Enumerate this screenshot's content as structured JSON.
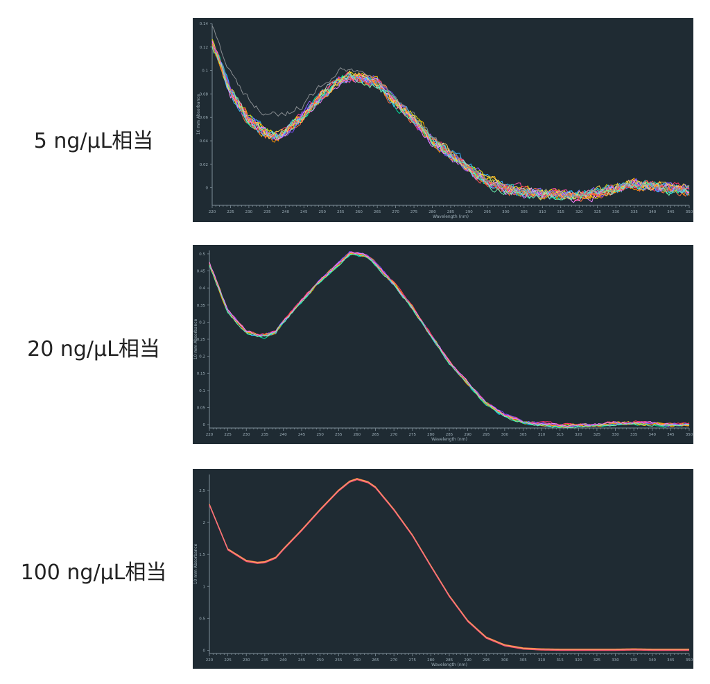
{
  "rows": [
    {
      "label": "5 ng/μL相当"
    },
    {
      "label": "20 ng/μL相当"
    },
    {
      "label": "100 ng/μL相当"
    }
  ],
  "chart_data": [
    {
      "type": "line",
      "title": "",
      "xlabel": "Wavelength (nm)",
      "ylabel": "10 mm Absorbance",
      "xlim": [
        220,
        350
      ],
      "ylim": [
        -0.015,
        0.14
      ],
      "xticks": [
        "220",
        "225",
        "230",
        "235",
        "240",
        "245",
        "250",
        "255",
        "260",
        "265",
        "270",
        "275",
        "280",
        "285",
        "290",
        "295",
        "300",
        "305",
        "310",
        "315",
        "320",
        "325",
        "330",
        "335",
        "340",
        "345",
        "350"
      ],
      "yticks": [
        "0.14",
        "0.12",
        "0.1",
        "0.08",
        "0.06",
        "0.04",
        "0.02",
        "0"
      ],
      "yticks_values": [
        0.14,
        0.12,
        0.1,
        0.08,
        0.06,
        0.04,
        0.02,
        0
      ],
      "grid": false,
      "series_count": 16,
      "noise": 0.004,
      "colors": [
        "#ff4da6",
        "#ffb300",
        "#33b5ff",
        "#8f5bff",
        "#ff6e40",
        "#e6e600",
        "#00e5a0",
        "#ff2e63",
        "#c8c8c8",
        "#7c4dff",
        "#ff9100",
        "#40c4ff",
        "#ea80fc",
        "#ffd54f",
        "#ff5252",
        "#69f0ae"
      ],
      "x": [
        220,
        225,
        230,
        235,
        238,
        240,
        245,
        250,
        255,
        258,
        260,
        265,
        270,
        275,
        280,
        285,
        290,
        295,
        300,
        305,
        310,
        315,
        320,
        325,
        330,
        335,
        340,
        345,
        350
      ],
      "y_mean": [
        0.124,
        0.082,
        0.058,
        0.046,
        0.043,
        0.047,
        0.062,
        0.079,
        0.092,
        0.095,
        0.094,
        0.089,
        0.072,
        0.058,
        0.04,
        0.028,
        0.016,
        0.005,
        -0.001,
        -0.004,
        -0.005,
        -0.006,
        -0.007,
        -0.004,
        -0.001,
        0.003,
        0.001,
        -0.001,
        -0.002
      ],
      "outlier": {
        "color": "#8a8f93",
        "y": [
          0.138,
          0.098,
          0.075,
          0.063,
          0.062,
          0.064,
          0.071,
          0.088,
          0.1,
          0.101,
          0.099,
          0.093,
          0.076,
          0.062,
          0.043,
          0.029,
          0.017,
          0.006,
          0.001,
          -0.004,
          -0.004,
          -0.005,
          -0.006,
          -0.003,
          0.0,
          0.004,
          0.002,
          0.0,
          -0.001
        ]
      }
    },
    {
      "type": "line",
      "title": "",
      "xlabel": "Wavelength (nm)",
      "ylabel": "10 mm Absorbance",
      "xlim": [
        220,
        350
      ],
      "ylim": [
        -0.01,
        0.51
      ],
      "xticks": [
        "220",
        "225",
        "230",
        "235",
        "240",
        "245",
        "250",
        "255",
        "260",
        "265",
        "270",
        "275",
        "280",
        "285",
        "290",
        "295",
        "300",
        "305",
        "310",
        "315",
        "320",
        "325",
        "330",
        "335",
        "340",
        "345",
        "350"
      ],
      "yticks": [
        "0.5",
        "0.45",
        "0.4",
        "0.35",
        "0.3",
        "0.25",
        "0.2",
        "0.15",
        "0.1",
        "0.05",
        "0"
      ],
      "yticks_values": [
        0.5,
        0.45,
        0.4,
        0.35,
        0.3,
        0.25,
        0.2,
        0.15,
        0.1,
        0.05,
        0
      ],
      "grid": false,
      "series_count": 12,
      "noise": 0.004,
      "colors": [
        "#ff4da6",
        "#ffb300",
        "#33b5ff",
        "#8f5bff",
        "#ff6e40",
        "#e6e600",
        "#00e5a0",
        "#ff2e63",
        "#7c4dff",
        "#ff9100",
        "#ea80fc",
        "#69f0ae"
      ],
      "x": [
        220,
        225,
        230,
        233,
        235,
        238,
        240,
        245,
        250,
        255,
        258,
        260,
        263,
        265,
        270,
        275,
        280,
        285,
        290,
        295,
        300,
        305,
        310,
        315,
        320,
        325,
        330,
        335,
        340,
        345,
        350
      ],
      "y_mean": [
        0.47,
        0.33,
        0.27,
        0.26,
        0.26,
        0.27,
        0.3,
        0.36,
        0.42,
        0.47,
        0.5,
        0.5,
        0.49,
        0.47,
        0.41,
        0.34,
        0.26,
        0.18,
        0.12,
        0.06,
        0.025,
        0.006,
        0.0,
        -0.005,
        -0.004,
        -0.003,
        0.002,
        0.003,
        0.001,
        -0.002,
        -0.002
      ],
      "outlier": null
    },
    {
      "type": "line",
      "title": "",
      "xlabel": "Wavelength (nm)",
      "ylabel": "10 mm Absorbance",
      "xlim": [
        220,
        350
      ],
      "ylim": [
        -0.05,
        2.75
      ],
      "xticks": [
        "220",
        "225",
        "230",
        "235",
        "240",
        "245",
        "250",
        "255",
        "260",
        "265",
        "270",
        "275",
        "280",
        "285",
        "290",
        "295",
        "300",
        "305",
        "310",
        "315",
        "320",
        "325",
        "330",
        "335",
        "340",
        "345",
        "350"
      ],
      "yticks": [
        "2.5",
        "2",
        "1.5",
        "1",
        "0.5",
        "0"
      ],
      "yticks_values": [
        2.5,
        2,
        1.5,
        1,
        0.5,
        0
      ],
      "grid": false,
      "series_count": 5,
      "noise": 0.0,
      "colors": [
        "#ff7043",
        "#ff9800",
        "#ff5252",
        "#ffb74d",
        "#f06292"
      ],
      "x": [
        220,
        225,
        230,
        233,
        235,
        238,
        240,
        245,
        250,
        255,
        258,
        260,
        263,
        265,
        270,
        275,
        280,
        285,
        290,
        295,
        300,
        305,
        310,
        315,
        320,
        325,
        330,
        335,
        340,
        345,
        350
      ],
      "y_mean": [
        2.28,
        1.58,
        1.4,
        1.37,
        1.38,
        1.45,
        1.58,
        1.88,
        2.2,
        2.5,
        2.64,
        2.68,
        2.63,
        2.55,
        2.2,
        1.8,
        1.32,
        0.85,
        0.46,
        0.2,
        0.08,
        0.03,
        0.015,
        0.01,
        0.01,
        0.01,
        0.01,
        0.015,
        0.01,
        0.01,
        0.01
      ],
      "outlier": null
    }
  ]
}
